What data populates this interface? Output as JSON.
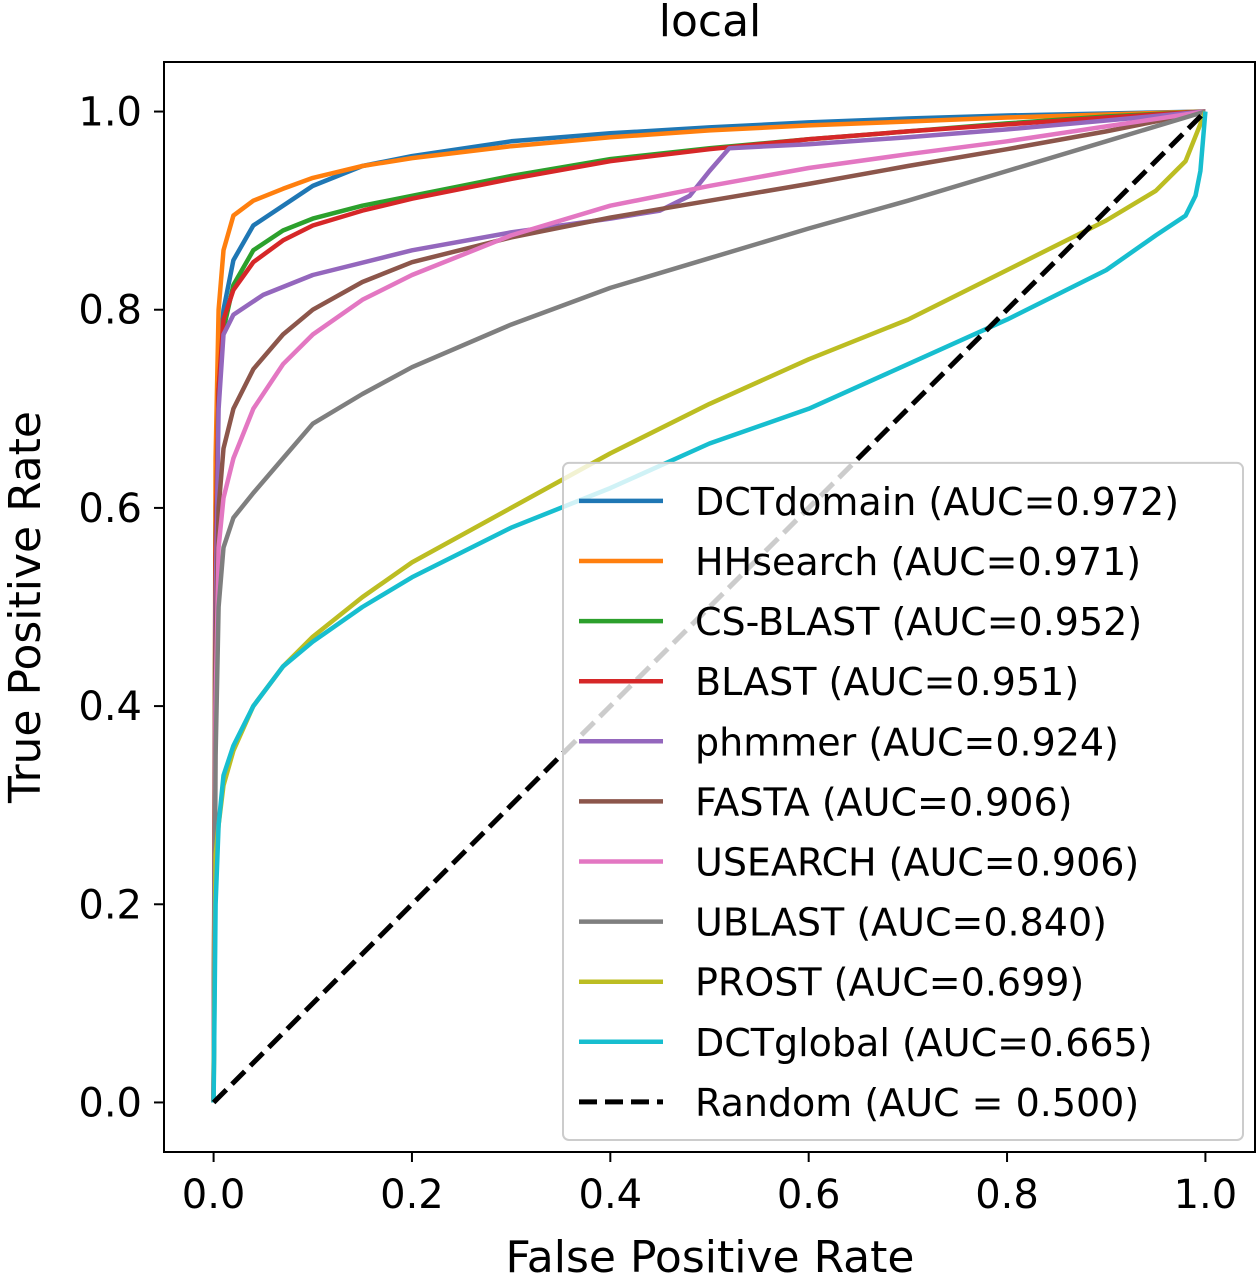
{
  "chart_data": {
    "type": "line",
    "title": "local",
    "xlabel": "False Positive Rate",
    "ylabel": "True Positive Rate",
    "xlim": [
      -0.05,
      1.05
    ],
    "ylim": [
      -0.05,
      1.05
    ],
    "xticks": [
      {
        "value": 0.0,
        "label": "0.0"
      },
      {
        "value": 0.2,
        "label": "0.2"
      },
      {
        "value": 0.4,
        "label": "0.4"
      },
      {
        "value": 0.6,
        "label": "0.6"
      },
      {
        "value": 0.8,
        "label": "0.8"
      },
      {
        "value": 1.0,
        "label": "1.0"
      }
    ],
    "yticks": [
      {
        "value": 0.0,
        "label": "0.0"
      },
      {
        "value": 0.2,
        "label": "0.2"
      },
      {
        "value": 0.4,
        "label": "0.4"
      },
      {
        "value": 0.6,
        "label": "0.6"
      },
      {
        "value": 0.8,
        "label": "0.8"
      },
      {
        "value": 1.0,
        "label": "1.0"
      }
    ],
    "grid": false,
    "legend_position": "lower-right",
    "series": [
      {
        "name": "DCTdomain (AUC=0.972)",
        "color": "#1f77b4",
        "x": [
          0,
          0.002,
          0.005,
          0.01,
          0.02,
          0.04,
          0.07,
          0.1,
          0.15,
          0.2,
          0.3,
          0.4,
          0.5,
          0.6,
          0.7,
          0.8,
          0.9,
          1.0
        ],
        "y": [
          0,
          0.6,
          0.74,
          0.8,
          0.85,
          0.885,
          0.905,
          0.925,
          0.945,
          0.955,
          0.97,
          0.978,
          0.984,
          0.989,
          0.993,
          0.996,
          0.998,
          1.0
        ]
      },
      {
        "name": "HHsearch (AUC=0.971)",
        "color": "#ff7f0e",
        "x": [
          0,
          0.002,
          0.005,
          0.01,
          0.02,
          0.04,
          0.07,
          0.1,
          0.15,
          0.2,
          0.3,
          0.4,
          0.5,
          0.6,
          0.7,
          0.8,
          0.9,
          1.0
        ],
        "y": [
          0,
          0.65,
          0.8,
          0.86,
          0.895,
          0.91,
          0.922,
          0.933,
          0.945,
          0.953,
          0.965,
          0.974,
          0.981,
          0.986,
          0.99,
          0.994,
          0.997,
          1.0
        ]
      },
      {
        "name": "CS-BLAST (AUC=0.952)",
        "color": "#2ca02c",
        "x": [
          0,
          0.002,
          0.005,
          0.01,
          0.02,
          0.04,
          0.07,
          0.1,
          0.15,
          0.2,
          0.3,
          0.4,
          0.5,
          0.6,
          0.7,
          0.8,
          0.9,
          1.0
        ],
        "y": [
          0,
          0.55,
          0.72,
          0.78,
          0.825,
          0.86,
          0.88,
          0.892,
          0.905,
          0.915,
          0.935,
          0.952,
          0.963,
          0.972,
          0.98,
          0.988,
          0.995,
          1.0
        ]
      },
      {
        "name": "BLAST (AUC=0.951)",
        "color": "#d62728",
        "x": [
          0,
          0.002,
          0.005,
          0.01,
          0.02,
          0.04,
          0.07,
          0.1,
          0.15,
          0.2,
          0.3,
          0.4,
          0.5,
          0.6,
          0.7,
          0.8,
          0.9,
          1.0
        ],
        "y": [
          0,
          0.55,
          0.72,
          0.79,
          0.82,
          0.848,
          0.87,
          0.885,
          0.9,
          0.912,
          0.932,
          0.95,
          0.962,
          0.972,
          0.98,
          0.987,
          0.994,
          1.0
        ]
      },
      {
        "name": "phmmer (AUC=0.924)",
        "color": "#9467bd",
        "x": [
          0,
          0.002,
          0.005,
          0.01,
          0.02,
          0.05,
          0.1,
          0.2,
          0.3,
          0.4,
          0.45,
          0.48,
          0.5,
          0.52,
          0.6,
          0.7,
          0.8,
          0.9,
          1.0
        ],
        "y": [
          0,
          0.5,
          0.7,
          0.775,
          0.795,
          0.815,
          0.835,
          0.86,
          0.878,
          0.892,
          0.9,
          0.915,
          0.94,
          0.963,
          0.967,
          0.974,
          0.982,
          0.991,
          1.0
        ]
      },
      {
        "name": "FASTA (AUC=0.906)",
        "color": "#8c564b",
        "x": [
          0,
          0.002,
          0.005,
          0.01,
          0.02,
          0.04,
          0.07,
          0.1,
          0.15,
          0.2,
          0.3,
          0.4,
          0.5,
          0.6,
          0.7,
          0.8,
          0.9,
          1.0
        ],
        "y": [
          0,
          0.45,
          0.6,
          0.66,
          0.7,
          0.74,
          0.775,
          0.8,
          0.828,
          0.848,
          0.873,
          0.893,
          0.91,
          0.927,
          0.945,
          0.962,
          0.98,
          1.0
        ]
      },
      {
        "name": "USEARCH (AUC=0.906)",
        "color": "#e377c2",
        "x": [
          0,
          0.002,
          0.005,
          0.01,
          0.02,
          0.04,
          0.07,
          0.1,
          0.15,
          0.2,
          0.3,
          0.4,
          0.5,
          0.6,
          0.7,
          0.8,
          0.9,
          1.0
        ],
        "y": [
          0,
          0.4,
          0.56,
          0.61,
          0.65,
          0.7,
          0.745,
          0.775,
          0.81,
          0.835,
          0.875,
          0.905,
          0.925,
          0.943,
          0.957,
          0.97,
          0.985,
          1.0
        ]
      },
      {
        "name": "UBLAST (AUC=0.840)",
        "color": "#7f7f7f",
        "x": [
          0,
          0.002,
          0.005,
          0.01,
          0.02,
          0.04,
          0.07,
          0.1,
          0.15,
          0.2,
          0.3,
          0.4,
          0.5,
          0.6,
          0.7,
          0.8,
          0.9,
          1.0
        ],
        "y": [
          0,
          0.35,
          0.5,
          0.56,
          0.59,
          0.615,
          0.65,
          0.685,
          0.715,
          0.742,
          0.785,
          0.822,
          0.852,
          0.882,
          0.91,
          0.94,
          0.97,
          1.0
        ]
      },
      {
        "name": "PROST (AUC=0.699)",
        "color": "#bcbd22",
        "x": [
          0,
          0.002,
          0.005,
          0.01,
          0.02,
          0.04,
          0.07,
          0.1,
          0.15,
          0.2,
          0.3,
          0.4,
          0.5,
          0.6,
          0.7,
          0.8,
          0.9,
          0.95,
          0.98,
          1.0
        ],
        "y": [
          0,
          0.25,
          0.28,
          0.32,
          0.355,
          0.4,
          0.44,
          0.47,
          0.51,
          0.545,
          0.6,
          0.655,
          0.705,
          0.75,
          0.79,
          0.84,
          0.89,
          0.92,
          0.95,
          1.0
        ]
      },
      {
        "name": "DCTglobal (AUC=0.665)",
        "color": "#17becf",
        "x": [
          0,
          0.002,
          0.005,
          0.01,
          0.02,
          0.04,
          0.07,
          0.1,
          0.15,
          0.2,
          0.3,
          0.4,
          0.5,
          0.6,
          0.7,
          0.8,
          0.9,
          0.95,
          0.98,
          0.99,
          0.995,
          1.0
        ],
        "y": [
          0,
          0.2,
          0.28,
          0.33,
          0.36,
          0.4,
          0.44,
          0.465,
          0.5,
          0.53,
          0.58,
          0.62,
          0.665,
          0.7,
          0.745,
          0.79,
          0.84,
          0.875,
          0.895,
          0.915,
          0.94,
          1.0
        ]
      },
      {
        "name": "Random (AUC = 0.500)",
        "color": "#000000",
        "dashed": true,
        "x": [
          0,
          1
        ],
        "y": [
          0,
          1
        ]
      }
    ]
  }
}
